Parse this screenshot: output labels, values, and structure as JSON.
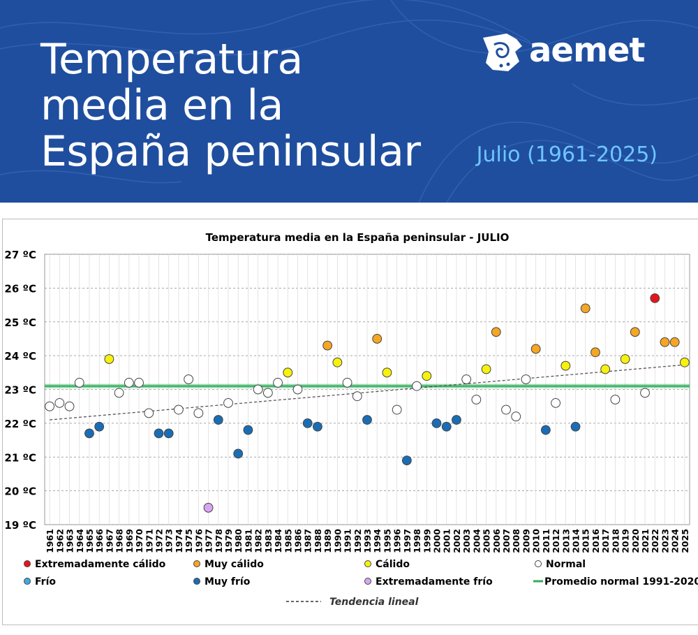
{
  "header": {
    "title_line1": "Temperatura",
    "title_line2": "media en la",
    "title_line3": "España peninsular",
    "subtitle": "Julio (1961-2025)",
    "logo_text": "aemet",
    "background_color": "#1f4e9f",
    "subtitle_color": "#6ec6ff"
  },
  "chart_data": {
    "type": "scatter",
    "title": "Temperatura media en la España peninsular - JULIO",
    "xlabel": "",
    "ylabel": "",
    "ylim": [
      19,
      27
    ],
    "y_tick_labels": [
      "19 ºC",
      "20 ºC",
      "21 ºC",
      "22 ºC",
      "23 ºC",
      "24 ºC",
      "25 ºC",
      "26 ºC",
      "27 ºC"
    ],
    "y_ticks": [
      19,
      20,
      21,
      22,
      23,
      24,
      25,
      26,
      27
    ],
    "grid": true,
    "years": [
      1961,
      1962,
      1963,
      1964,
      1965,
      1966,
      1967,
      1968,
      1969,
      1970,
      1971,
      1972,
      1973,
      1974,
      1975,
      1976,
      1977,
      1978,
      1979,
      1980,
      1981,
      1982,
      1983,
      1984,
      1985,
      1986,
      1987,
      1988,
      1989,
      1990,
      1991,
      1992,
      1993,
      1994,
      1995,
      1996,
      1997,
      1998,
      1999,
      2000,
      2001,
      2002,
      2003,
      2004,
      2005,
      2006,
      2007,
      2008,
      2009,
      2010,
      2011,
      2012,
      2013,
      2014,
      2015,
      2016,
      2017,
      2018,
      2019,
      2020,
      2021,
      2022,
      2023,
      2024,
      2025
    ],
    "values": [
      22.5,
      22.6,
      22.5,
      23.2,
      21.7,
      21.9,
      23.9,
      22.9,
      23.2,
      23.2,
      22.3,
      21.7,
      21.7,
      22.4,
      23.3,
      22.3,
      19.5,
      22.1,
      22.6,
      21.1,
      21.8,
      23.0,
      22.9,
      23.2,
      23.5,
      23.0,
      22.0,
      21.9,
      24.3,
      23.8,
      23.2,
      22.8,
      22.1,
      24.5,
      23.5,
      22.4,
      20.9,
      23.1,
      23.4,
      22.0,
      21.9,
      22.1,
      23.3,
      22.7,
      23.6,
      24.7,
      22.4,
      22.2,
      23.3,
      24.2,
      21.8,
      22.6,
      23.7,
      21.9,
      25.4,
      24.1,
      23.6,
      22.7,
      23.9,
      24.7,
      22.9,
      25.7,
      24.4,
      24.4,
      23.8
    ],
    "categories": [
      "normal",
      "normal",
      "normal",
      "normal",
      "muy_frio",
      "muy_frio",
      "calido",
      "normal",
      "normal",
      "normal",
      "normal",
      "muy_frio",
      "muy_frio",
      "normal",
      "normal",
      "normal",
      "ext_frio",
      "muy_frio",
      "normal",
      "muy_frio",
      "muy_frio",
      "normal",
      "normal",
      "normal",
      "calido",
      "normal",
      "muy_frio",
      "muy_frio",
      "muy_calido",
      "calido",
      "normal",
      "normal",
      "muy_frio",
      "muy_calido",
      "calido",
      "normal",
      "muy_frio",
      "normal",
      "calido",
      "muy_frio",
      "muy_frio",
      "muy_frio",
      "normal",
      "normal",
      "calido",
      "muy_calido",
      "normal",
      "normal",
      "normal",
      "muy_calido",
      "muy_frio",
      "normal",
      "calido",
      "muy_frio",
      "muy_calido",
      "muy_calido",
      "calido",
      "normal",
      "calido",
      "muy_calido",
      "normal",
      "ext_calido",
      "muy_calido",
      "muy_calido",
      "calido"
    ],
    "category_colors": {
      "ext_calido": "#e8141b",
      "muy_calido": "#f5a623",
      "calido": "#f7f20c",
      "normal": "#ffffff",
      "frio": "#3fa9e0",
      "muy_frio": "#1a6db5",
      "ext_frio": "#d8a6f0"
    },
    "normal_mean": 23.1,
    "normal_color": "#2fae5b",
    "trend": {
      "start_year": 1961,
      "start_value": 22.1,
      "end_year": 2025,
      "end_value": 23.73
    },
    "legend": [
      {
        "key": "ext_calido",
        "label": "Extremadamente cálido",
        "kind": "dot"
      },
      {
        "key": "muy_calido",
        "label": "Muy cálido",
        "kind": "dot"
      },
      {
        "key": "calido",
        "label": "Cálido",
        "kind": "dot"
      },
      {
        "key": "normal",
        "label": "Normal",
        "kind": "dot"
      },
      {
        "key": "frio",
        "label": "Frío",
        "kind": "dot"
      },
      {
        "key": "muy_frio",
        "label": "Muy frío",
        "kind": "dot"
      },
      {
        "key": "ext_frio",
        "label": "Extremadamente frío",
        "kind": "dot"
      },
      {
        "key": "normal_mean",
        "label": "Promedio normal 1991-2020",
        "kind": "line"
      },
      {
        "key": "trend",
        "label": "Tendencia lineal",
        "kind": "dash"
      }
    ]
  }
}
